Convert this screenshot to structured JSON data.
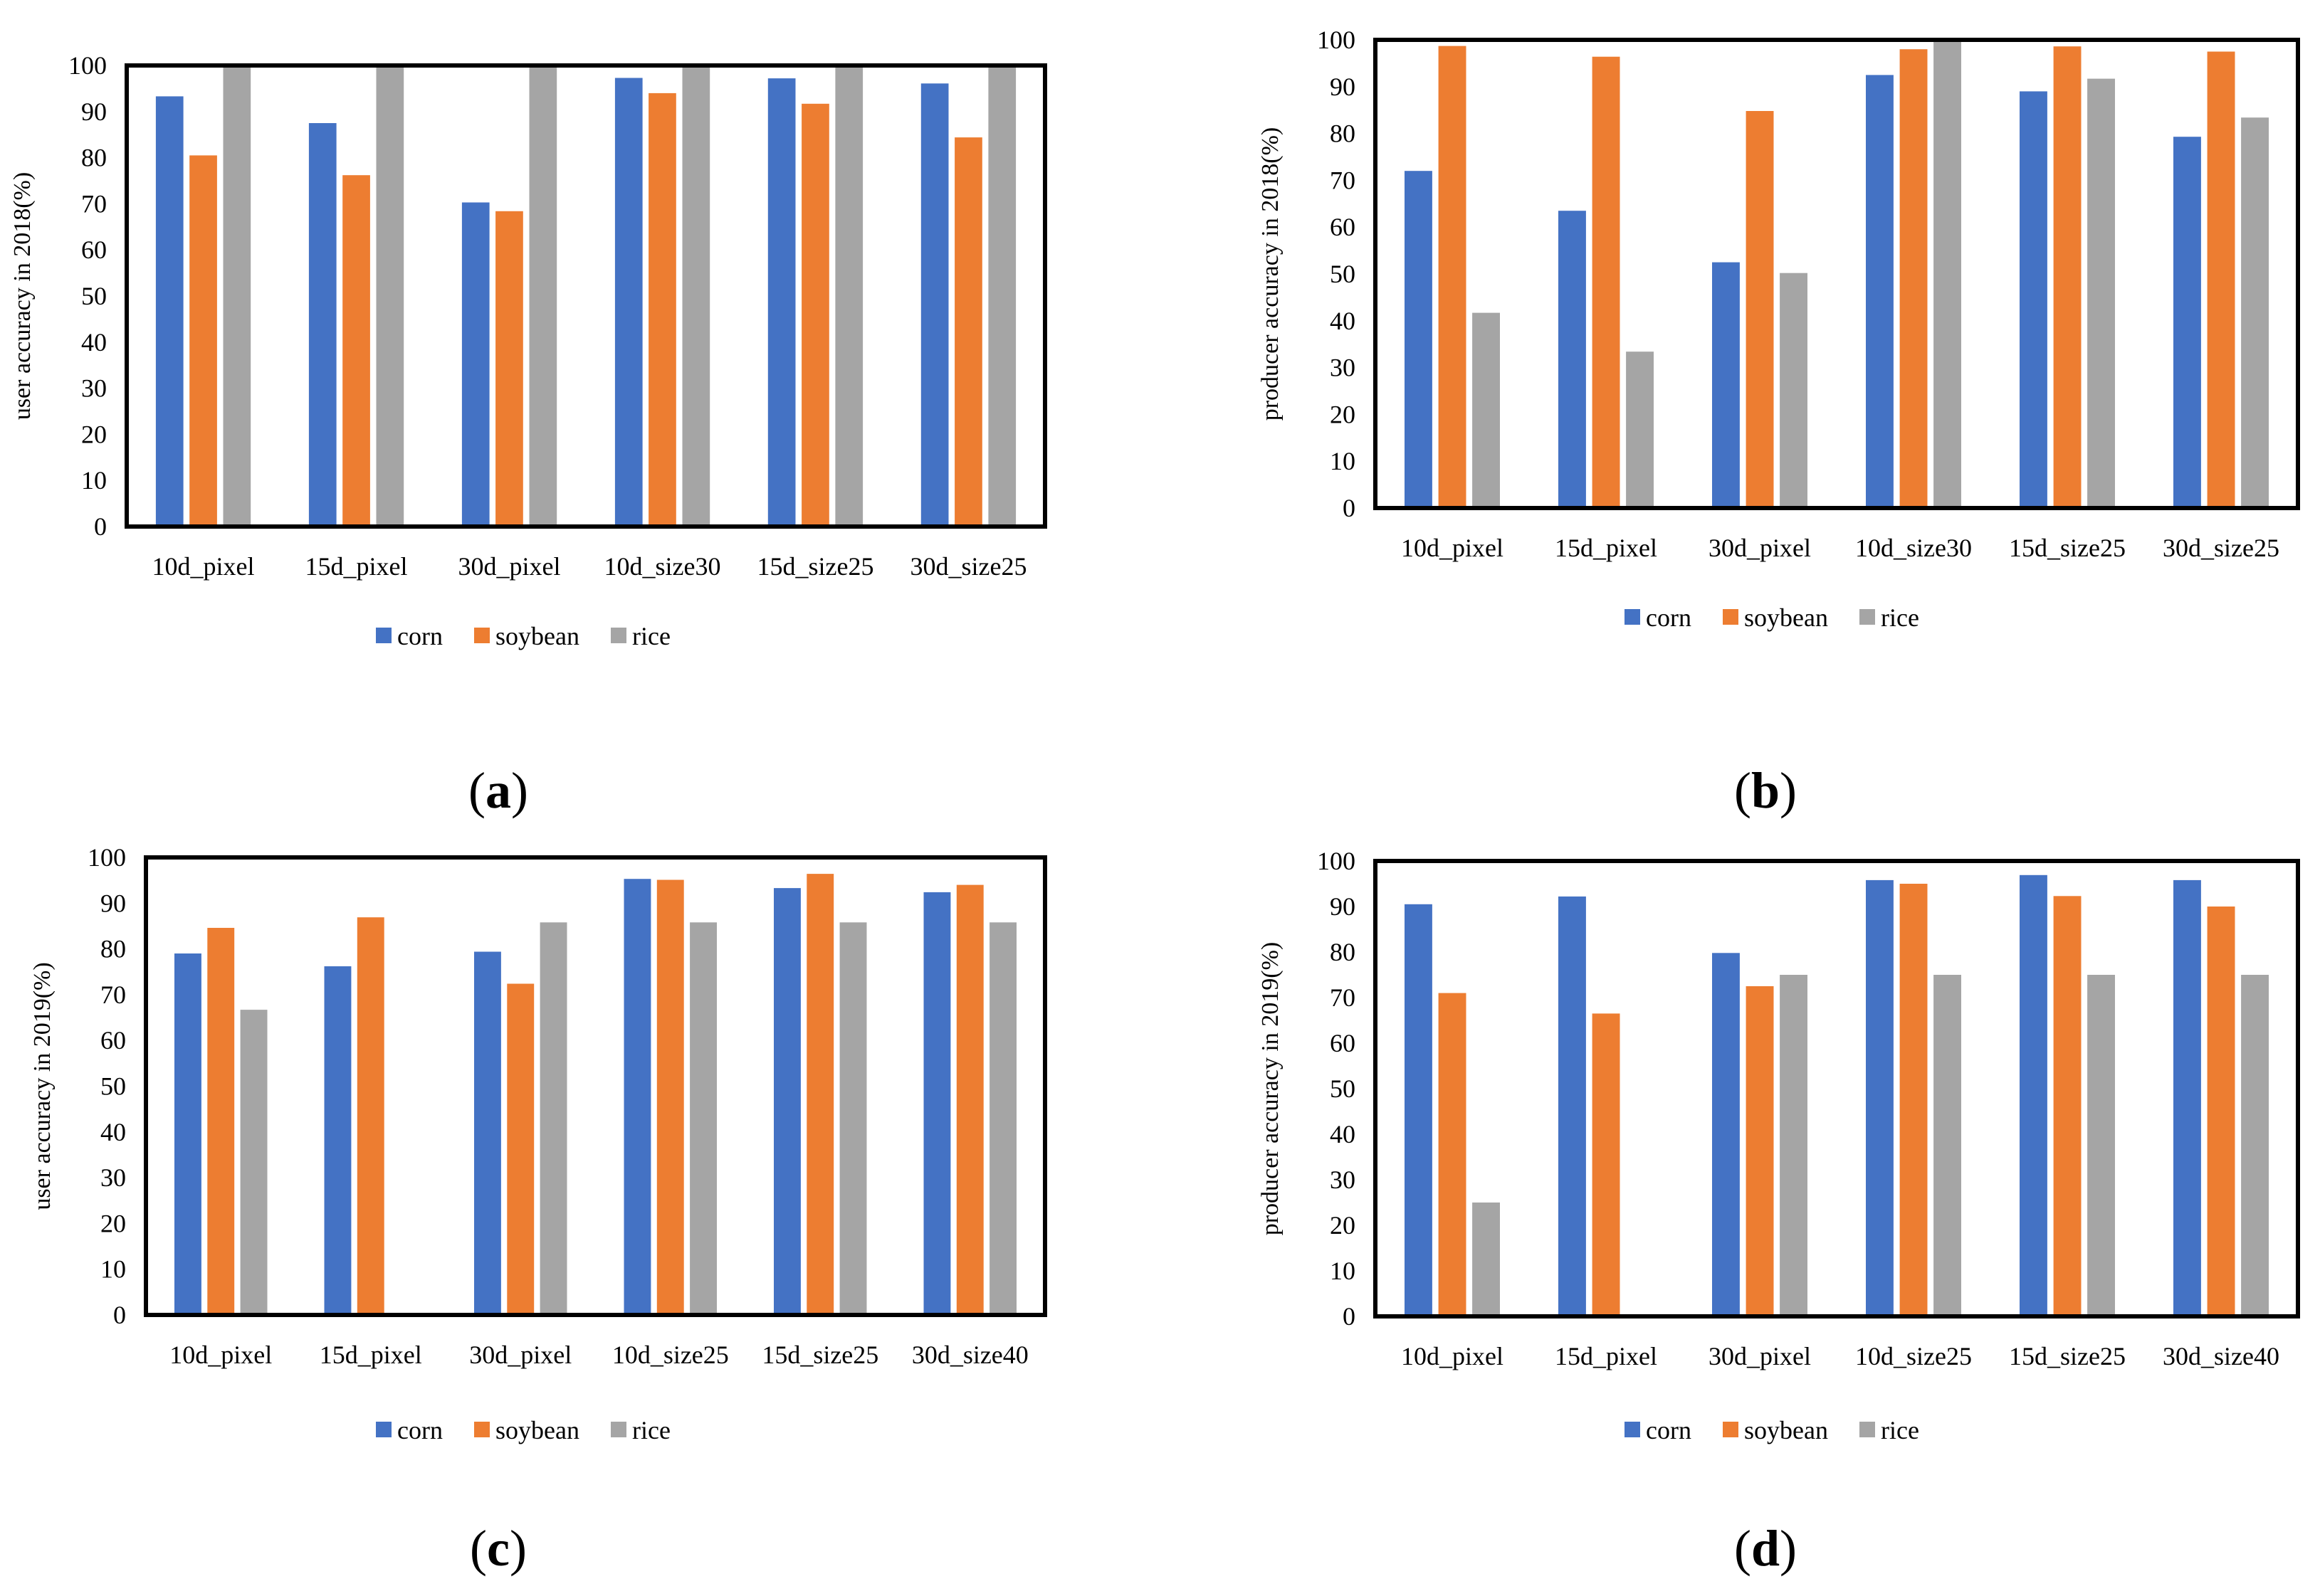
{
  "colors": {
    "corn": "#4472C4",
    "soybean": "#ED7D31",
    "rice": "#A5A5A5"
  },
  "chart_data": [
    {
      "id": "a",
      "type": "bar",
      "panel_label": "a",
      "ylabel": "user accuracy in 2018(%)",
      "ylim": [
        0,
        100
      ],
      "yticks": [
        "0",
        "10",
        "20",
        "30",
        "40",
        "50",
        "60",
        "70",
        "80",
        "90",
        "100"
      ],
      "grid": false,
      "legend_position": "bottom",
      "categories": [
        "10d_pixel",
        "15d_pixel",
        "30d_pixel",
        "10d_size30",
        "15d_size25",
        "30d_size25"
      ],
      "series": [
        {
          "name": "corn",
          "values": [
            93.3,
            87.5,
            70.3,
            97.3,
            97.2,
            96.1
          ]
        },
        {
          "name": "soybean",
          "values": [
            80.5,
            76.2,
            68.4,
            94.0,
            91.7,
            84.4
          ]
        },
        {
          "name": "rice",
          "values": [
            100,
            100,
            100,
            100,
            100,
            100
          ]
        }
      ]
    },
    {
      "id": "b",
      "type": "bar",
      "panel_label": "b",
      "ylabel": "producer accuracy in 2018(%)",
      "ylim": [
        0,
        100
      ],
      "yticks": [
        "0",
        "10",
        "20",
        "30",
        "40",
        "50",
        "60",
        "70",
        "80",
        "90",
        "100"
      ],
      "grid": false,
      "legend_position": "bottom",
      "categories": [
        "10d_pixel",
        "15d_pixel",
        "30d_pixel",
        "10d_size30",
        "15d_size25",
        "30d_size25"
      ],
      "series": [
        {
          "name": "corn",
          "values": [
            72.0,
            63.5,
            52.5,
            92.5,
            89.0,
            79.3
          ]
        },
        {
          "name": "soybean",
          "values": [
            98.7,
            96.4,
            84.8,
            98.0,
            98.6,
            97.5
          ]
        },
        {
          "name": "rice",
          "values": [
            41.7,
            33.4,
            50.2,
            100,
            91.7,
            83.4
          ]
        }
      ]
    },
    {
      "id": "c",
      "type": "bar",
      "panel_label": "c",
      "ylabel": "user accuracy in 2019(%)",
      "ylim": [
        0,
        100
      ],
      "yticks": [
        "0",
        "10",
        "20",
        "30",
        "40",
        "50",
        "60",
        "70",
        "80",
        "90",
        "100"
      ],
      "grid": false,
      "legend_position": "bottom",
      "categories": [
        "10d_pixel",
        "15d_pixel",
        "30d_pixel",
        "10d_size25",
        "15d_size25",
        "30d_size40"
      ],
      "series": [
        {
          "name": "corn",
          "values": [
            79.0,
            76.2,
            79.4,
            95.3,
            93.3,
            92.4
          ]
        },
        {
          "name": "soybean",
          "values": [
            84.6,
            86.9,
            72.4,
            95.1,
            96.4,
            94.0
          ]
        },
        {
          "name": "rice",
          "values": [
            66.7,
            0,
            85.8,
            85.8,
            85.8,
            85.8
          ]
        }
      ]
    },
    {
      "id": "d",
      "type": "bar",
      "panel_label": "d",
      "ylabel": "producer accuracy in 2019(%)",
      "ylim": [
        0,
        100
      ],
      "yticks": [
        "0",
        "10",
        "20",
        "30",
        "40",
        "50",
        "60",
        "70",
        "80",
        "90",
        "100"
      ],
      "grid": false,
      "legend_position": "bottom",
      "categories": [
        "10d_pixel",
        "15d_pixel",
        "30d_pixel",
        "10d_size25",
        "15d_size25",
        "30d_size40"
      ],
      "series": [
        {
          "name": "corn",
          "values": [
            90.5,
            92.2,
            79.8,
            95.8,
            96.9,
            95.8
          ]
        },
        {
          "name": "soybean",
          "values": [
            71.0,
            66.5,
            72.5,
            95.0,
            92.3,
            90.0
          ]
        },
        {
          "name": "rice",
          "values": [
            25.0,
            0,
            75.0,
            75.0,
            75.0,
            75.0
          ]
        }
      ]
    }
  ]
}
